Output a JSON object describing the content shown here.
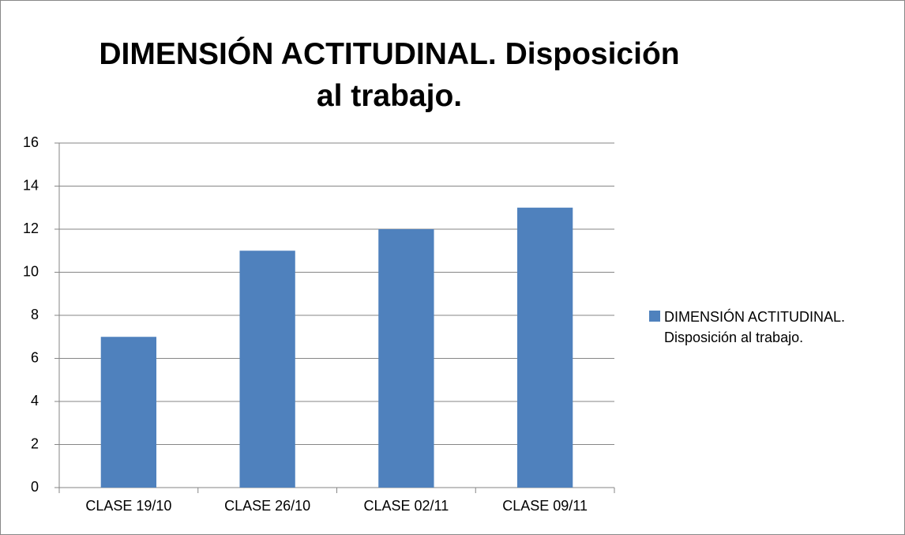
{
  "chart_data": {
    "type": "bar",
    "title": "DIMENSIÓN ACTITUDINAL. Disposición al trabajo.",
    "categories": [
      "CLASE 19/10",
      "CLASE 26/10",
      "CLASE 02/11",
      "CLASE 09/11"
    ],
    "series": [
      {
        "name": "DIMENSIÓN ACTITUDINAL. Disposición al trabajo.",
        "color": "#4f81bd",
        "values": [
          7,
          11,
          12,
          13
        ]
      }
    ],
    "ylim": [
      0,
      16
    ],
    "yticks": [
      0,
      2,
      4,
      6,
      8,
      10,
      12,
      14,
      16
    ],
    "grid": true,
    "legend": "right"
  }
}
